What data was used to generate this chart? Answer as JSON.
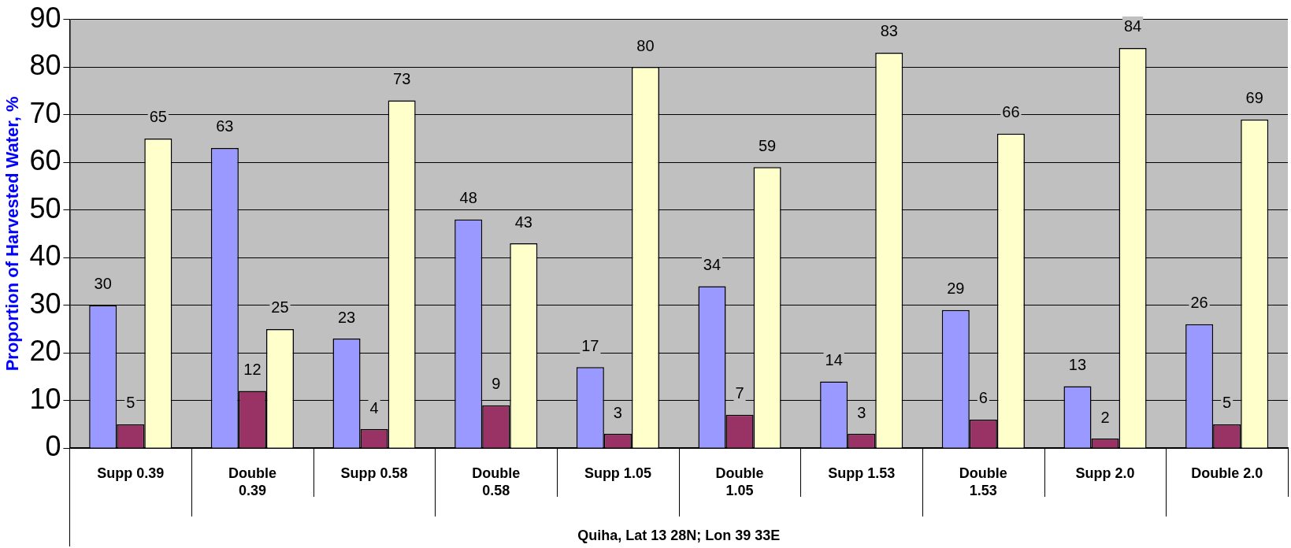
{
  "chart_data": {
    "type": "bar",
    "ylabel": "Proportion of Harvested Water, %",
    "xlabel": "Quiha, Lat 13 28N; Lon 39 33E",
    "categories": [
      "Supp 0.39",
      "Double 0.39",
      "Supp 0.58",
      "Double 0.58",
      "Supp 1.05",
      "Double 1.05",
      "Supp 1.53",
      "Double 1.53",
      "Supp 2.0",
      "Double 2.0"
    ],
    "series": [
      {
        "color": "#9999ff",
        "values": [
          30,
          63,
          23,
          48,
          17,
          34,
          14,
          29,
          13,
          26
        ]
      },
      {
        "color": "#993366",
        "values": [
          5,
          12,
          4,
          9,
          3,
          7,
          3,
          6,
          2,
          5
        ]
      },
      {
        "color": "#ffffcc",
        "values": [
          65,
          25,
          73,
          43,
          80,
          59,
          83,
          66,
          84,
          69
        ]
      }
    ],
    "ylim": [
      0,
      90
    ],
    "yticks": [
      0,
      10,
      20,
      30,
      40,
      50,
      60,
      70,
      80,
      90
    ],
    "grid": "y",
    "legend": false,
    "data_labels": true
  }
}
